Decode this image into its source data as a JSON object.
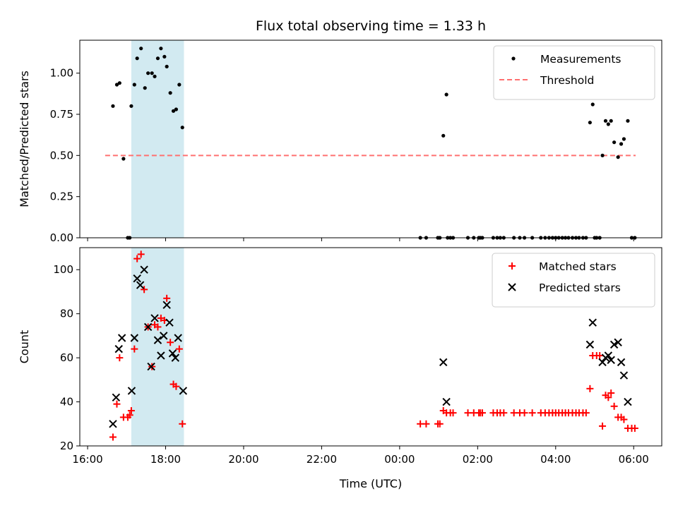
{
  "chart_data": {
    "title": "Flux total observing time = 1.33 h",
    "xlabel": "Time (UTC)",
    "x_unit": "hours relative to 00:00 UTC",
    "xlim": [
      -8.2,
      6.72
    ],
    "xticks": [
      {
        "value": -8,
        "label": "16:00"
      },
      {
        "value": -6,
        "label": "18:00"
      },
      {
        "value": -4,
        "label": "20:00"
      },
      {
        "value": -2,
        "label": "22:00"
      },
      {
        "value": 0,
        "label": "00:00"
      },
      {
        "value": 2,
        "label": "02:00"
      },
      {
        "value": 4,
        "label": "04:00"
      },
      {
        "value": 6,
        "label": "06:00"
      }
    ],
    "highlight_span": {
      "x0": -6.88,
      "x1": -5.53,
      "color": "#add8e6"
    },
    "panels": [
      {
        "type": "scatter",
        "ylabel": "Matched/Predicted stars",
        "ylim": [
          0,
          1.2
        ],
        "yticks": [
          {
            "value": 0,
            "label": "0.00"
          },
          {
            "value": 0.25,
            "label": "0.25"
          },
          {
            "value": 0.5,
            "label": "0.50"
          },
          {
            "value": 0.75,
            "label": "0.75"
          },
          {
            "value": 1.0,
            "label": "1.00"
          }
        ],
        "legend": {
          "position": "top-right",
          "entries": [
            {
              "label": "Measurements",
              "marker": "dot",
              "color": "#000000"
            },
            {
              "label": "Threshold",
              "marker": "dashed-line",
              "color": "#ff7070"
            }
          ]
        },
        "threshold": {
          "value": 0.5,
          "x0": -7.55,
          "x1": 6.05,
          "color": "#ff7070"
        },
        "series": [
          {
            "name": "Measurements",
            "color": "#000000",
            "points": [
              [
                -7.35,
                0.8
              ],
              [
                -7.25,
                0.93
              ],
              [
                -7.18,
                0.94
              ],
              [
                -7.08,
                0.48
              ],
              [
                -6.97,
                0.0
              ],
              [
                -6.92,
                0.0
              ],
              [
                -6.88,
                0.8
              ],
              [
                -6.8,
                0.93
              ],
              [
                -6.73,
                1.09
              ],
              [
                -6.63,
                1.15
              ],
              [
                -6.53,
                0.91
              ],
              [
                -6.45,
                1.0
              ],
              [
                -6.35,
                1.0
              ],
              [
                -6.28,
                0.98
              ],
              [
                -6.2,
                1.09
              ],
              [
                -6.12,
                1.15
              ],
              [
                -6.03,
                1.1
              ],
              [
                -5.97,
                1.04
              ],
              [
                -5.88,
                0.88
              ],
              [
                -5.8,
                0.77
              ],
              [
                -5.73,
                0.78
              ],
              [
                -5.65,
                0.93
              ],
              [
                -5.57,
                0.67
              ],
              [
                0.53,
                0.0
              ],
              [
                0.68,
                0.0
              ],
              [
                0.98,
                0.0
              ],
              [
                1.03,
                0.0
              ],
              [
                1.12,
                0.62
              ],
              [
                1.2,
                0.87
              ],
              [
                1.23,
                0.0
              ],
              [
                1.3,
                0.0
              ],
              [
                1.37,
                0.0
              ],
              [
                1.75,
                0.0
              ],
              [
                1.9,
                0.0
              ],
              [
                2.03,
                0.0
              ],
              [
                2.07,
                0.0
              ],
              [
                2.12,
                0.0
              ],
              [
                2.4,
                0.0
              ],
              [
                2.5,
                0.0
              ],
              [
                2.58,
                0.0
              ],
              [
                2.67,
                0.0
              ],
              [
                2.93,
                0.0
              ],
              [
                3.08,
                0.0
              ],
              [
                3.2,
                0.0
              ],
              [
                3.4,
                0.0
              ],
              [
                3.62,
                0.0
              ],
              [
                3.73,
                0.0
              ],
              [
                3.83,
                0.0
              ],
              [
                3.92,
                0.0
              ],
              [
                4.0,
                0.0
              ],
              [
                4.08,
                0.0
              ],
              [
                4.17,
                0.0
              ],
              [
                4.25,
                0.0
              ],
              [
                4.33,
                0.0
              ],
              [
                4.43,
                0.0
              ],
              [
                4.52,
                0.0
              ],
              [
                4.6,
                0.0
              ],
              [
                4.7,
                0.0
              ],
              [
                4.78,
                0.0
              ],
              [
                4.88,
                0.7
              ],
              [
                4.95,
                0.81
              ],
              [
                5.0,
                0.0
              ],
              [
                5.05,
                0.0
              ],
              [
                5.13,
                0.0
              ],
              [
                5.2,
                0.5
              ],
              [
                5.28,
                0.71
              ],
              [
                5.35,
                0.69
              ],
              [
                5.42,
                0.71
              ],
              [
                5.5,
                0.58
              ],
              [
                5.6,
                0.49
              ],
              [
                5.68,
                0.57
              ],
              [
                5.75,
                0.6
              ],
              [
                5.85,
                0.71
              ],
              [
                5.95,
                0.0
              ],
              [
                6.03,
                0.0
              ]
            ]
          }
        ]
      },
      {
        "type": "scatter",
        "ylabel": "Count",
        "ylim": [
          20,
          110
        ],
        "yticks": [
          {
            "value": 20,
            "label": "20"
          },
          {
            "value": 40,
            "label": "40"
          },
          {
            "value": 60,
            "label": "60"
          },
          {
            "value": 80,
            "label": "80"
          },
          {
            "value": 100,
            "label": "100"
          }
        ],
        "legend": {
          "position": "top-right",
          "entries": [
            {
              "label": "Matched stars",
              "marker": "plus",
              "color": "#ff0000"
            },
            {
              "label": "Predicted stars",
              "marker": "x",
              "color": "#000000"
            }
          ]
        },
        "series": [
          {
            "name": "Matched stars",
            "marker": "plus",
            "color": "#ff0000",
            "points": [
              [
                -7.35,
                24
              ],
              [
                -7.25,
                39
              ],
              [
                -7.18,
                60
              ],
              [
                -7.08,
                33
              ],
              [
                -6.97,
                33
              ],
              [
                -6.92,
                34
              ],
              [
                -6.88,
                36
              ],
              [
                -6.8,
                64
              ],
              [
                -6.73,
                105
              ],
              [
                -6.63,
                107
              ],
              [
                -6.55,
                91
              ],
              [
                -6.45,
                74
              ],
              [
                -6.35,
                56
              ],
              [
                -6.28,
                75
              ],
              [
                -6.2,
                74
              ],
              [
                -6.12,
                78
              ],
              [
                -6.03,
                77
              ],
              [
                -5.97,
                87
              ],
              [
                -5.88,
                67
              ],
              [
                -5.8,
                48
              ],
              [
                -5.73,
                47
              ],
              [
                -5.65,
                64
              ],
              [
                -5.57,
                30
              ],
              [
                0.53,
                30
              ],
              [
                0.68,
                30
              ],
              [
                0.98,
                30
              ],
              [
                1.03,
                30
              ],
              [
                1.12,
                36
              ],
              [
                1.2,
                35
              ],
              [
                1.3,
                35
              ],
              [
                1.37,
                35
              ],
              [
                1.75,
                35
              ],
              [
                1.9,
                35
              ],
              [
                2.03,
                35
              ],
              [
                2.07,
                35
              ],
              [
                2.12,
                35
              ],
              [
                2.4,
                35
              ],
              [
                2.5,
                35
              ],
              [
                2.58,
                35
              ],
              [
                2.67,
                35
              ],
              [
                2.93,
                35
              ],
              [
                3.08,
                35
              ],
              [
                3.2,
                35
              ],
              [
                3.4,
                35
              ],
              [
                3.62,
                35
              ],
              [
                3.73,
                35
              ],
              [
                3.83,
                35
              ],
              [
                3.92,
                35
              ],
              [
                4.0,
                35
              ],
              [
                4.08,
                35
              ],
              [
                4.17,
                35
              ],
              [
                4.25,
                35
              ],
              [
                4.33,
                35
              ],
              [
                4.43,
                35
              ],
              [
                4.52,
                35
              ],
              [
                4.6,
                35
              ],
              [
                4.7,
                35
              ],
              [
                4.78,
                35
              ],
              [
                4.88,
                46
              ],
              [
                4.95,
                61
              ],
              [
                5.05,
                61
              ],
              [
                5.13,
                61
              ],
              [
                5.2,
                29
              ],
              [
                5.28,
                43
              ],
              [
                5.35,
                42
              ],
              [
                5.42,
                44
              ],
              [
                5.5,
                38
              ],
              [
                5.6,
                33
              ],
              [
                5.68,
                33
              ],
              [
                5.75,
                32
              ],
              [
                5.85,
                28
              ],
              [
                5.95,
                28
              ],
              [
                6.03,
                28
              ]
            ]
          },
          {
            "name": "Predicted stars",
            "marker": "x",
            "color": "#000000",
            "points": [
              [
                -7.35,
                30
              ],
              [
                -7.27,
                42
              ],
              [
                -7.2,
                64
              ],
              [
                -7.12,
                69
              ],
              [
                -6.87,
                45
              ],
              [
                -6.8,
                69
              ],
              [
                -6.73,
                96
              ],
              [
                -6.65,
                93
              ],
              [
                -6.55,
                100
              ],
              [
                -6.45,
                74
              ],
              [
                -6.37,
                56
              ],
              [
                -6.28,
                78
              ],
              [
                -6.2,
                68
              ],
              [
                -6.12,
                61
              ],
              [
                -6.05,
                70
              ],
              [
                -5.97,
                84
              ],
              [
                -5.9,
                76
              ],
              [
                -5.82,
                62
              ],
              [
                -5.75,
                60
              ],
              [
                -5.68,
                69
              ],
              [
                -5.55,
                45
              ],
              [
                1.12,
                58
              ],
              [
                1.2,
                40
              ],
              [
                4.88,
                66
              ],
              [
                4.95,
                76
              ],
              [
                5.2,
                58
              ],
              [
                5.28,
                60
              ],
              [
                5.35,
                61
              ],
              [
                5.42,
                59
              ],
              [
                5.5,
                66
              ],
              [
                5.6,
                67
              ],
              [
                5.68,
                58
              ],
              [
                5.75,
                52
              ],
              [
                5.85,
                40
              ]
            ]
          }
        ]
      }
    ]
  }
}
